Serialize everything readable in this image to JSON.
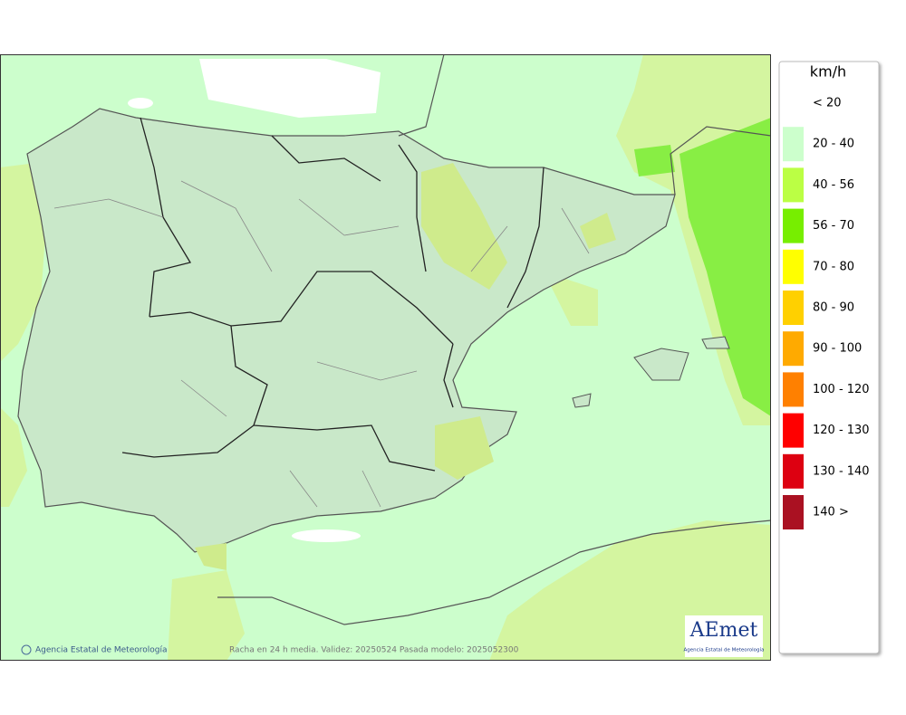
{
  "legend": {
    "unit": "km/h",
    "items": [
      {
        "label": "< 20",
        "color": "#ffffff"
      },
      {
        "label": "20 - 40",
        "color": "#ccffcc"
      },
      {
        "label": "40 - 56",
        "color": "#bbff44"
      },
      {
        "label": "56 - 70",
        "color": "#77ee00"
      },
      {
        "label": "70 - 80",
        "color": "#ffff00"
      },
      {
        "label": "80 - 90",
        "color": "#ffd000"
      },
      {
        "label": "90 - 100",
        "color": "#ffaa00"
      },
      {
        "label": "100 - 120",
        "color": "#ff8000"
      },
      {
        "label": "120 - 130",
        "color": "#ff0000"
      },
      {
        "label": "130 - 140",
        "color": "#dd0011"
      },
      {
        "label": "140 >",
        "color": "#aa1122"
      }
    ]
  },
  "footer": {
    "credit": "Agencia Estatal de Meteorología",
    "caption": "Racha en 24 h media. Validez: 20250524 Pasada modelo: 2025052300"
  },
  "logo": {
    "name": "AEmet",
    "subtitle": "Agencia Estatal de Meteorología"
  }
}
